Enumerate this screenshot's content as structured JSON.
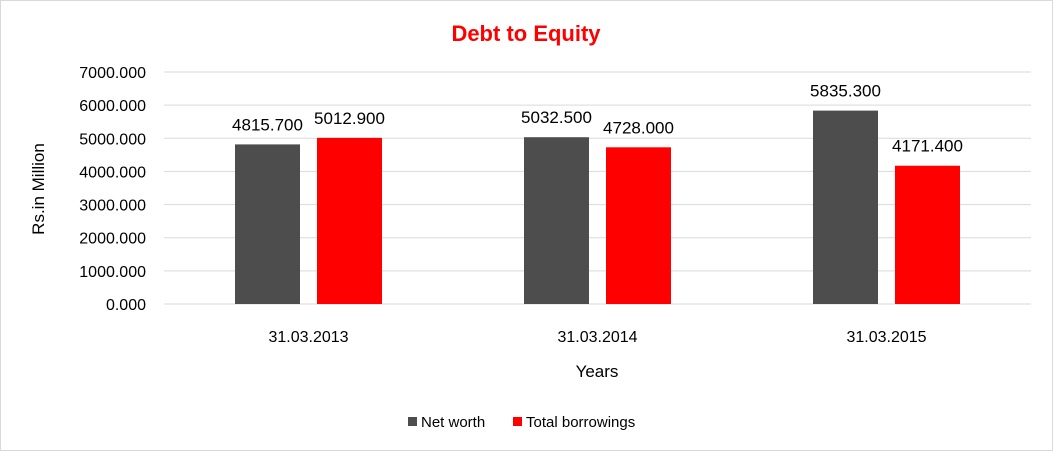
{
  "chart_data": {
    "type": "bar",
    "title": "Debt to Equity",
    "xlabel": "Years",
    "ylabel": "Rs.in Million",
    "categories": [
      "31.03.2013",
      "31.03.2014",
      "31.03.2015"
    ],
    "series": [
      {
        "name": "Net worth",
        "color": "#4d4d4d",
        "values": [
          4815.7,
          5032.5,
          5835.3
        ],
        "labels": [
          "4815.700",
          "5032.500",
          "5835.300"
        ]
      },
      {
        "name": "Total borrowings",
        "color": "#ff0000",
        "values": [
          5012.9,
          4728.0,
          4171.4
        ],
        "labels": [
          "5012.900",
          "4728.000",
          "4171.400"
        ]
      }
    ],
    "ylim": [
      0,
      7000
    ],
    "yticks": [
      0,
      1000,
      2000,
      3000,
      4000,
      5000,
      6000,
      7000
    ],
    "ytick_labels": [
      "0.000",
      "1000.000",
      "2000.000",
      "3000.000",
      "4000.000",
      "5000.000",
      "6000.000",
      "7000.000"
    ],
    "grid": true,
    "legend_position": "bottom",
    "title_color": "#ff0000"
  }
}
